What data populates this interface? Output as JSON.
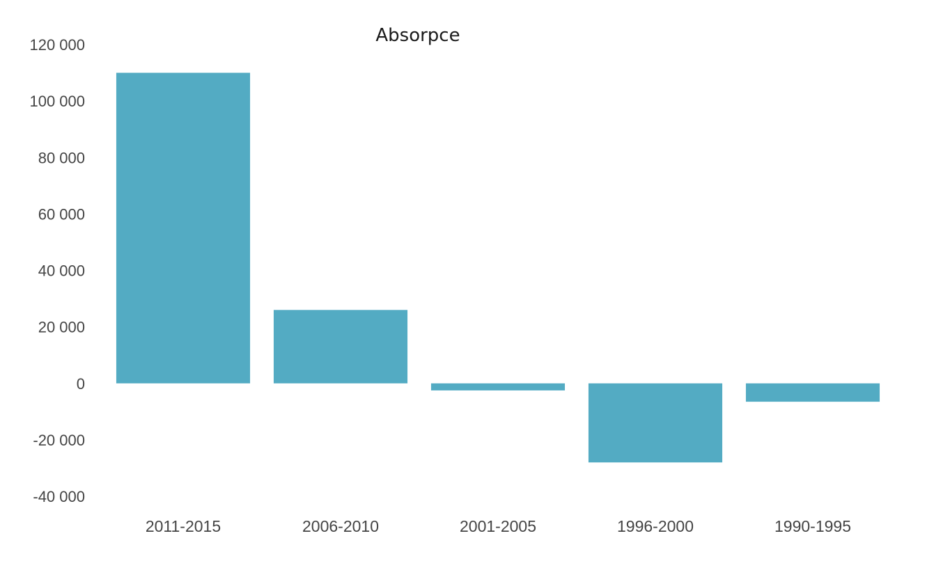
{
  "chart_data": {
    "type": "bar",
    "title": "Absorpce",
    "xlabel": "",
    "ylabel": "",
    "categories": [
      "2011-2015",
      "2006-2010",
      "2001-2005",
      "1996-2000",
      "1990-1995"
    ],
    "values": [
      110000,
      26000,
      -2500,
      -28000,
      -6500
    ],
    "ylim": [
      -40000,
      120000
    ],
    "yticks": [
      120000,
      100000,
      80000,
      60000,
      40000,
      20000,
      0,
      -20000,
      -40000
    ],
    "ytick_labels": [
      "120 000",
      "100 000",
      "80 000",
      "60 000",
      "40 000",
      "20 000",
      "0",
      "-20 000",
      "-40 000"
    ],
    "grid": false,
    "legend": "none",
    "bar_color": "#53abc3"
  }
}
